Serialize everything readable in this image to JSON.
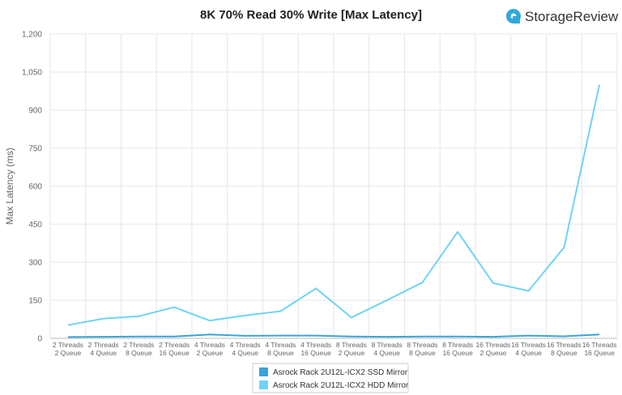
{
  "brand": {
    "name": "StorageReview",
    "logo_color": "#2fa8e0"
  },
  "chart_data": {
    "type": "line",
    "title": "8K 70% Read 30% Write [Max Latency]",
    "xlabel": "",
    "ylabel": "Max Latency (ms)",
    "ylim": [
      0,
      1200
    ],
    "yticks": [
      "0",
      "150",
      "300",
      "450",
      "600",
      "750",
      "900",
      "1,050",
      "1,200"
    ],
    "ytick_values": [
      0,
      150,
      300,
      450,
      600,
      750,
      900,
      1050,
      1200
    ],
    "grid": true,
    "legend_position": "bottom-center",
    "categories": [
      [
        "2 Threads",
        "2 Queue"
      ],
      [
        "2 Threads",
        "4 Queue"
      ],
      [
        "2 Threads",
        "8 Queue"
      ],
      [
        "2 Threads",
        "16 Queue"
      ],
      [
        "4 Threads",
        "2 Queue"
      ],
      [
        "4 Threads",
        "4 Queue"
      ],
      [
        "4 Threads",
        "8 Queue"
      ],
      [
        "4 Threads",
        "16 Queue"
      ],
      [
        "8 Threads",
        "2 Queue"
      ],
      [
        "8 Threads",
        "4 Queue"
      ],
      [
        "8 Threads",
        "8 Queue"
      ],
      [
        "8 Threads",
        "16 Queue"
      ],
      [
        "16 Threads",
        "2 Queue"
      ],
      [
        "16 Threads",
        "4 Queue"
      ],
      [
        "16 Threads",
        "8 Queue"
      ],
      [
        "16 Threads",
        "16 Queue"
      ]
    ],
    "series": [
      {
        "name": "Asrock Rack 2U12L-ICX2 SSD Mirror",
        "color": "#3ba3d8",
        "values": [
          5,
          6,
          7,
          7,
          15,
          10,
          11,
          11,
          7,
          6,
          7,
          7,
          6,
          11,
          8,
          15
        ]
      },
      {
        "name": "Asrock Rack 2U12L-ICX2 HDD Mirror",
        "color": "#6fd3f5",
        "values": [
          52,
          78,
          87,
          123,
          70,
          90,
          107,
          197,
          82,
          150,
          220,
          420,
          218,
          187,
          358,
          1000
        ]
      }
    ]
  }
}
